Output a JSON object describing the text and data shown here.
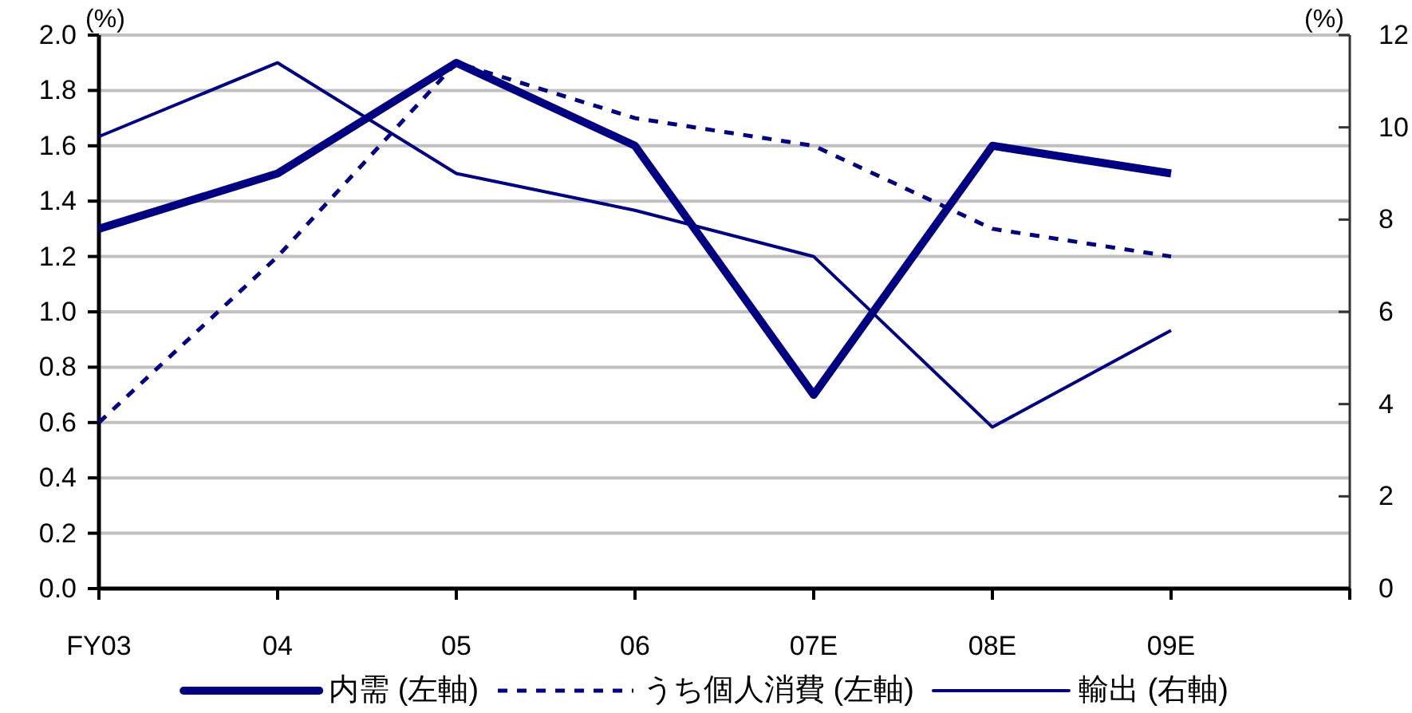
{
  "chart_data": {
    "type": "line",
    "categories": [
      "FY03",
      "04",
      "05",
      "06",
      "07E",
      "08E",
      "09E",
      null
    ],
    "ylabel": "(%)",
    "y2label": "(%)",
    "ylim": [
      0,
      2
    ],
    "yticks": [
      {
        "value": 0,
        "label": "0.0"
      },
      0.2,
      0.4,
      0.6,
      0.8,
      {
        "value": 1,
        "label": "1.0"
      },
      1.2,
      1.4,
      1.6,
      1.8,
      {
        "value": 2,
        "label": "2.0"
      }
    ],
    "y2lim": [
      0,
      12
    ],
    "y2ticks": [
      0,
      2,
      4,
      6,
      8,
      10,
      12
    ],
    "grid": "y",
    "legend": "bottom",
    "series": [
      {
        "name": "内需 (左軸)",
        "color": "#000080",
        "line_style": "solid",
        "values": [
          1.3,
          1.5,
          1.9,
          1.6,
          0.7,
          1.6,
          1.5,
          null
        ]
      },
      {
        "name": "うち個人消費 (左軸)",
        "color": "#000080",
        "line_style": "dashed",
        "values": [
          0.6,
          1.2,
          1.9,
          1.7,
          1.6,
          1.3,
          1.2,
          null
        ]
      },
      {
        "name": "輸出 (右軸)",
        "color": "#000080",
        "axis": "y2",
        "line_style": "solid",
        "values": [
          9.8,
          11.4,
          9.0,
          8.2,
          7.2,
          3.5,
          5.6,
          null
        ]
      }
    ]
  }
}
